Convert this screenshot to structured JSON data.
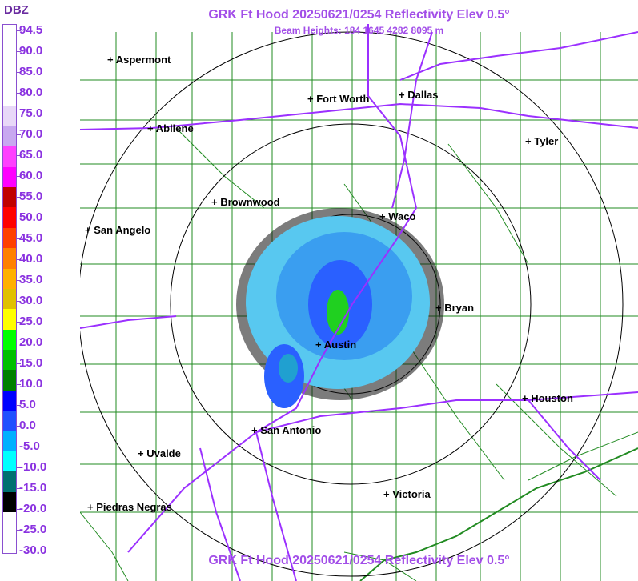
{
  "header": {
    "title": "GRK Ft Hood 20250621/0254 Reflectivity Elev 0.5°",
    "beam_heights": "Beam Heights: 184 1645 4282 8095 m",
    "footer_title": "GRK Ft Hood 20250621/0254 Reflectivity Elev 0.5°"
  },
  "legend": {
    "unit": "DBZ",
    "labels": [
      "94.5",
      "90.0",
      "85.0",
      "80.0",
      "75.0",
      "70.0",
      "65.0",
      "60.0",
      "55.0",
      "50.0",
      "45.0",
      "40.0",
      "35.0",
      "30.0",
      "25.0",
      "20.0",
      "15.0",
      "10.0",
      "5.0",
      "0.0",
      "-5.0",
      "-10.0",
      "-15.0",
      "-20.0",
      "-25.0",
      "-30.0"
    ],
    "colors": [
      "#ffffff",
      "#ffffff",
      "#ffffff",
      "#ffffff",
      "#e8d8f8",
      "#c8a8f0",
      "#ff40ff",
      "#ff00ff",
      "#c00000",
      "#ff0000",
      "#ff4000",
      "#ff8000",
      "#ffb000",
      "#e0c000",
      "#ffff00",
      "#00ff00",
      "#00c000",
      "#008000",
      "#0000ff",
      "#2050ff",
      "#00b0ff",
      "#00ffff",
      "#007070",
      "#000000",
      "#ffffff",
      "#ffffff"
    ]
  },
  "map": {
    "colors": {
      "border": "#228b22",
      "highway": "#9b30ff",
      "range_ring": "#000000",
      "echo_light": "#40c0ff",
      "echo_mid": "#2060ff",
      "echo_green": "#20d020"
    },
    "cities": [
      {
        "name": "Aspermont"
      },
      {
        "name": "Fort Worth"
      },
      {
        "name": "Dallas"
      },
      {
        "name": "Abilene"
      },
      {
        "name": "Tyler"
      },
      {
        "name": "Brownwood"
      },
      {
        "name": "Waco"
      },
      {
        "name": "San Angelo"
      },
      {
        "name": "Bryan"
      },
      {
        "name": "Austin"
      },
      {
        "name": "Houston"
      },
      {
        "name": "San Antonio"
      },
      {
        "name": "Uvalde"
      },
      {
        "name": "Victoria"
      },
      {
        "name": "Piedras Negras"
      }
    ]
  }
}
